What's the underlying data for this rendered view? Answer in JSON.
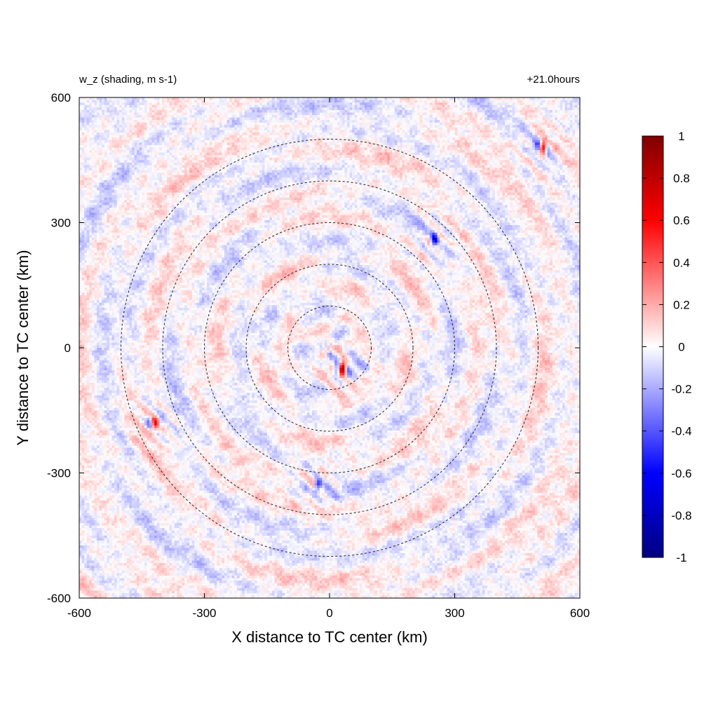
{
  "chart_data": {
    "type": "heatmap",
    "title_left": "w_z (shading, m s-1)",
    "title_right": "+21.0hours",
    "xlabel": "X distance to TC center (km)",
    "ylabel": "Y distance to TC center (km)",
    "xlim": [
      -600,
      600
    ],
    "ylim": [
      -600,
      600
    ],
    "xticks": [
      -600,
      -300,
      0,
      300,
      600
    ],
    "yticks": [
      -600,
      -300,
      0,
      300,
      600
    ],
    "xtick_labels": [
      "-600",
      "-300",
      "0",
      "300",
      "600"
    ],
    "ytick_labels": [
      "-600",
      "-300",
      "0",
      "300",
      "600"
    ],
    "range_rings_km": [
      100,
      200,
      300,
      400,
      500
    ],
    "ring_center": [
      0,
      0
    ],
    "colorbar": {
      "min": -1,
      "max": 1,
      "ticks": [
        1,
        0.8,
        0.6,
        0.4,
        0.2,
        0,
        -0.2,
        -0.4,
        -0.6,
        -0.8,
        -1
      ],
      "tick_labels": [
        "1",
        "0.8",
        "0.6",
        "0.4",
        "0.2",
        "0",
        "-0.2",
        "-0.4",
        "-0.6",
        "-0.8",
        "-1"
      ],
      "colors": {
        "max": "#800000",
        "upper": "#ff0000",
        "mid": "#ffffff",
        "lower": "#0000ff",
        "min": "#000080"
      }
    },
    "features": [
      {
        "x": 30,
        "y": -50,
        "peak": 1.0,
        "note": "strong updraft/downdraft couplet"
      },
      {
        "x": 510,
        "y": 480,
        "peak": 0.8
      },
      {
        "x": 250,
        "y": 260,
        "peak": -0.5
      },
      {
        "x": -420,
        "y": -180,
        "peak": 0.6
      },
      {
        "x": -30,
        "y": -330,
        "peak": -0.4
      }
    ]
  }
}
